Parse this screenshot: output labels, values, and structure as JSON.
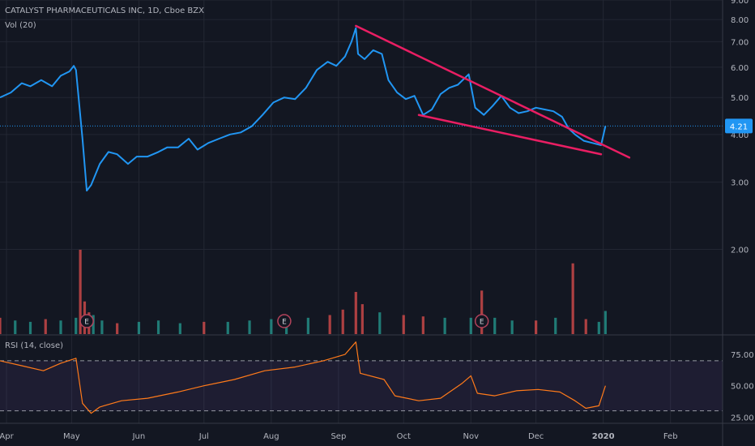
{
  "header": {
    "symbol_line": "CATALYST PHARMACEUTICALS INC, 1D, Cboe BZX",
    "volume_label": "Vol (20)",
    "rsi_label": "RSI (14, close)"
  },
  "colors": {
    "background": "#131722",
    "grid": "#232733",
    "price_line": "#2196f3",
    "trendline": "#e91e63",
    "rsi_line": "#ff7a1a",
    "rsi_band": "#7e57c2",
    "volume_up": "#26a69a",
    "volume_down": "#ef5350",
    "last_price_badge": "#2196f3"
  },
  "chart_data": [
    {
      "type": "line",
      "title": "CATALYST PHARMACEUTICALS INC, 1D, Cboe BZX",
      "y_scale": "log",
      "ylim": [
        1.2,
        9.0
      ],
      "y_ticks": [
        "9.00",
        "8.00",
        "7.00",
        "6.00",
        "5.00",
        "4.00",
        "3.00",
        "2.00"
      ],
      "x_tick_labels": [
        "Apr",
        "May",
        "Jun",
        "Jul",
        "Aug",
        "Sep",
        "Oct",
        "Nov",
        "Dec",
        "2020",
        "Feb"
      ],
      "last_price": "4.21",
      "series": [
        {
          "points": [
            [
              "Mar 29",
              5.0
            ],
            [
              "Apr 3",
              5.15
            ],
            [
              "Apr 8",
              5.45
            ],
            [
              "Apr 12",
              5.35
            ],
            [
              "Apr 17",
              5.55
            ],
            [
              "Apr 22",
              5.35
            ],
            [
              "Apr 26",
              5.7
            ],
            [
              "Apr 30",
              5.85
            ],
            [
              "May 2",
              6.05
            ],
            [
              "May 3",
              5.9
            ],
            [
              "May 6",
              3.9
            ],
            [
              "May 8",
              2.85
            ],
            [
              "May 10",
              2.95
            ],
            [
              "May 14",
              3.35
            ],
            [
              "May 18",
              3.6
            ],
            [
              "May 22",
              3.55
            ],
            [
              "May 27",
              3.35
            ],
            [
              "May 31",
              3.5
            ],
            [
              "Jun 5",
              3.5
            ],
            [
              "Jun 10",
              3.6
            ],
            [
              "Jun 14",
              3.7
            ],
            [
              "Jun 19",
              3.7
            ],
            [
              "Jun 24",
              3.9
            ],
            [
              "Jun 28",
              3.65
            ],
            [
              "Jul 3",
              3.8
            ],
            [
              "Jul 8",
              3.9
            ],
            [
              "Jul 13",
              4.0
            ],
            [
              "Jul 18",
              4.05
            ],
            [
              "Jul 23",
              4.2
            ],
            [
              "Jul 28",
              4.5
            ],
            [
              "Aug 2",
              4.85
            ],
            [
              "Aug 7",
              5.0
            ],
            [
              "Aug 12",
              4.95
            ],
            [
              "Aug 17",
              5.3
            ],
            [
              "Aug 22",
              5.9
            ],
            [
              "Aug 27",
              6.2
            ],
            [
              "Aug 31",
              6.05
            ],
            [
              "Sep 4",
              6.4
            ],
            [
              "Sep 7",
              7.0
            ],
            [
              "Sep 9",
              7.6
            ],
            [
              "Sep 10",
              6.5
            ],
            [
              "Sep 13",
              6.3
            ],
            [
              "Sep 17",
              6.65
            ],
            [
              "Sep 21",
              6.5
            ],
            [
              "Sep 24",
              5.55
            ],
            [
              "Sep 28",
              5.15
            ],
            [
              "Oct 2",
              4.95
            ],
            [
              "Oct 6",
              5.05
            ],
            [
              "Oct 10",
              4.5
            ],
            [
              "Oct 14",
              4.65
            ],
            [
              "Oct 18",
              5.1
            ],
            [
              "Oct 22",
              5.3
            ],
            [
              "Oct 26",
              5.4
            ],
            [
              "Oct 31",
              5.75
            ],
            [
              "Nov 3",
              4.7
            ],
            [
              "Nov 7",
              4.5
            ],
            [
              "Nov 11",
              4.75
            ],
            [
              "Nov 15",
              5.05
            ],
            [
              "Nov 19",
              4.7
            ],
            [
              "Nov 23",
              4.55
            ],
            [
              "Nov 27",
              4.6
            ],
            [
              "Dec 1",
              4.7
            ],
            [
              "Dec 5",
              4.65
            ],
            [
              "Dec 9",
              4.6
            ],
            [
              "Dec 13",
              4.45
            ],
            [
              "Dec 16",
              4.15
            ],
            [
              "Dec 19",
              4.0
            ],
            [
              "Dec 23",
              3.85
            ],
            [
              "Dec 27",
              3.8
            ],
            [
              "Dec 31",
              3.75
            ],
            [
              "Jan 2",
              4.21
            ]
          ]
        }
      ],
      "trendlines": [
        {
          "name": "upper",
          "from": [
            "Sep 9",
            7.7
          ],
          "to": [
            "Jan 13",
            3.48
          ]
        },
        {
          "name": "lower",
          "from": [
            "Oct 8",
            4.5
          ],
          "to": [
            "Dec 31",
            3.55
          ]
        }
      ],
      "earnings_markers": [
        {
          "date": "May 8",
          "label": "E"
        },
        {
          "date": "Aug 7",
          "label": "E"
        },
        {
          "date": "Nov 6",
          "label": "E"
        }
      ]
    },
    {
      "type": "bar",
      "title": "Vol (20)",
      "x": [
        "Mar 29",
        "Apr 5",
        "Apr 12",
        "Apr 19",
        "Apr 26",
        "May 3",
        "May 5",
        "May 7",
        "May 9",
        "May 11",
        "May 15",
        "May 22",
        "Jun 1",
        "Jun 10",
        "Jun 20",
        "Jul 1",
        "Jul 12",
        "Jul 22",
        "Aug 1",
        "Aug 8",
        "Aug 18",
        "Aug 28",
        "Sep 3",
        "Sep 9",
        "Sep 12",
        "Sep 20",
        "Oct 1",
        "Oct 10",
        "Oct 20",
        "Nov 1",
        "Nov 6",
        "Nov 12",
        "Nov 20",
        "Dec 1",
        "Dec 10",
        "Dec 18",
        "Dec 24",
        "Dec 30",
        "Jan 2"
      ],
      "values": [
        0.6,
        0.5,
        0.45,
        0.55,
        0.5,
        0.6,
        3.1,
        1.2,
        0.8,
        0.7,
        0.5,
        0.4,
        0.45,
        0.5,
        0.4,
        0.45,
        0.45,
        0.5,
        0.55,
        0.65,
        0.6,
        0.7,
        0.9,
        1.55,
        1.1,
        0.8,
        0.7,
        0.65,
        0.6,
        0.6,
        1.6,
        0.6,
        0.5,
        0.5,
        0.6,
        2.6,
        0.55,
        0.45,
        0.85
      ],
      "direction": [
        "down",
        "up",
        "up",
        "down",
        "up",
        "up",
        "down",
        "down",
        "down",
        "up",
        "up",
        "down",
        "up",
        "up",
        "up",
        "down",
        "up",
        "up",
        "up",
        "up",
        "up",
        "down",
        "down",
        "down",
        "down",
        "up",
        "down",
        "down",
        "up",
        "up",
        "down",
        "up",
        "up",
        "down",
        "up",
        "down",
        "down",
        "up",
        "up"
      ]
    },
    {
      "type": "line",
      "title": "RSI (14, close)",
      "ylim": [
        20,
        90
      ],
      "y_ticks": [
        "75.00",
        "50.00",
        "25.00"
      ],
      "bands": [
        70,
        30
      ],
      "series": [
        {
          "points": [
            [
              "Mar 29",
              70
            ],
            [
              "Apr 8",
              66
            ],
            [
              "Apr 18",
              62
            ],
            [
              "Apr 26",
              68
            ],
            [
              "May 3",
              72
            ],
            [
              "May 6",
              36
            ],
            [
              "May 10",
              28
            ],
            [
              "May 14",
              33
            ],
            [
              "May 24",
              38
            ],
            [
              "Jun 5",
              40
            ],
            [
              "Jun 19",
              45
            ],
            [
              "Jul 1",
              50
            ],
            [
              "Jul 15",
              55
            ],
            [
              "Jul 29",
              62
            ],
            [
              "Aug 12",
              65
            ],
            [
              "Aug 25",
              70
            ],
            [
              "Sep 4",
              75
            ],
            [
              "Sep 9",
              85
            ],
            [
              "Sep 11",
              60
            ],
            [
              "Sep 22",
              55
            ],
            [
              "Sep 27",
              42
            ],
            [
              "Oct 8",
              38
            ],
            [
              "Oct 18",
              40
            ],
            [
              "Oct 28",
              52
            ],
            [
              "Nov 1",
              58
            ],
            [
              "Nov 4",
              44
            ],
            [
              "Nov 12",
              42
            ],
            [
              "Nov 22",
              46
            ],
            [
              "Dec 2",
              47
            ],
            [
              "Dec 12",
              45
            ],
            [
              "Dec 19",
              38
            ],
            [
              "Dec 24",
              32
            ],
            [
              "Dec 30",
              34
            ],
            [
              "Jan 2",
              50
            ]
          ]
        }
      ]
    }
  ]
}
